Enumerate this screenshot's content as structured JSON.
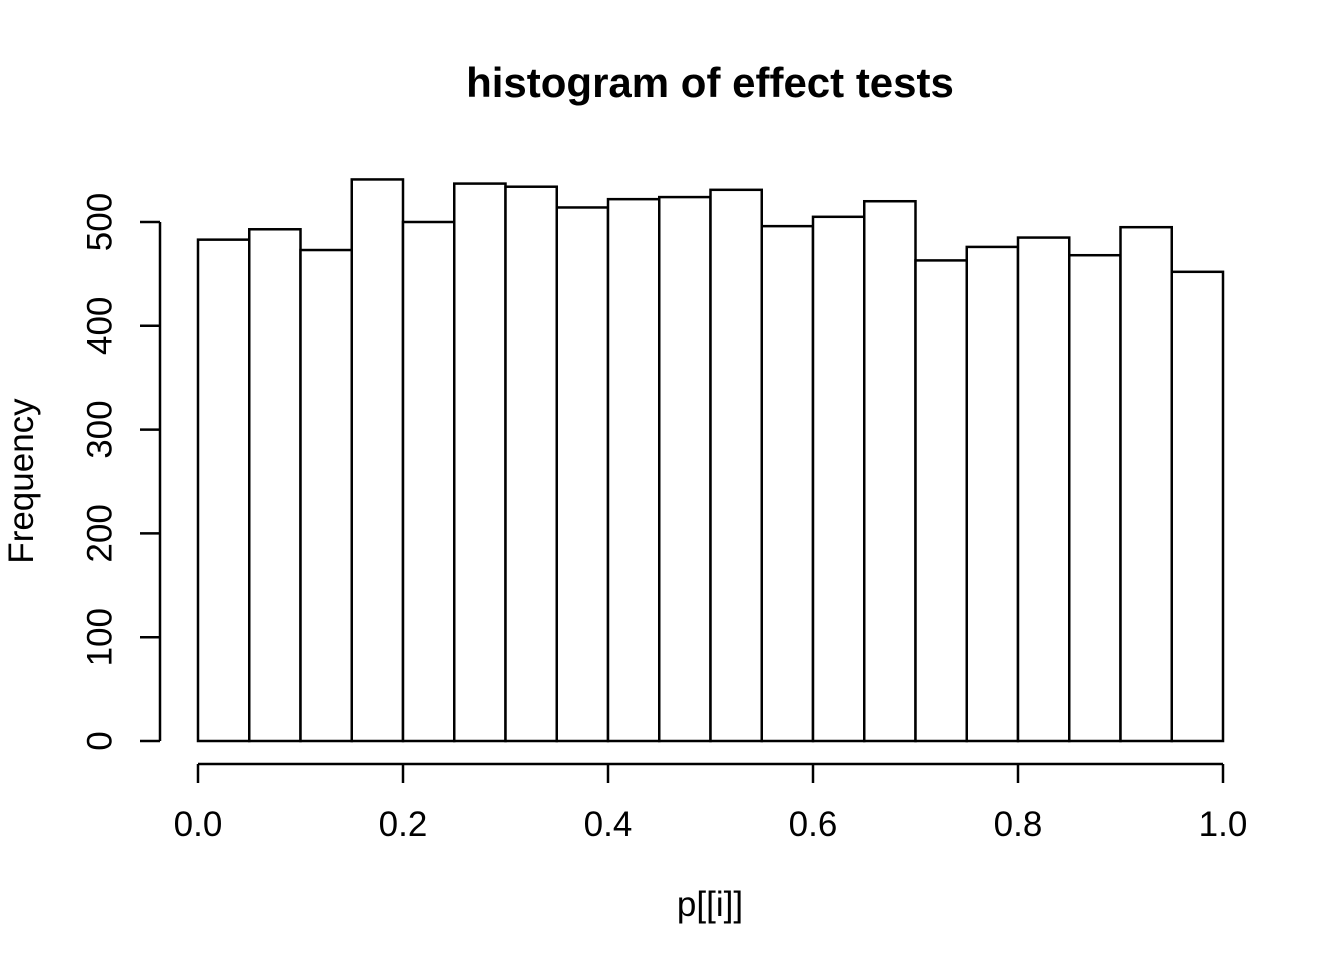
{
  "figure": {
    "background_color": "#ffffff",
    "line_color": "#000000"
  },
  "chart_data": {
    "type": "bar",
    "subtype": "histogram",
    "title": "histogram of effect tests",
    "xlabel": "p[[i]]",
    "ylabel": "Frequency",
    "bin_start": 0.0,
    "bin_width": 0.05,
    "bin_edges": [
      0.0,
      0.05,
      0.1,
      0.15,
      0.2,
      0.25,
      0.3,
      0.35,
      0.4,
      0.45,
      0.5,
      0.55,
      0.6,
      0.65,
      0.7,
      0.75,
      0.8,
      0.85,
      0.9,
      0.95,
      1.0
    ],
    "values": [
      483,
      493,
      473,
      541,
      500,
      537,
      534,
      514,
      522,
      524,
      531,
      496,
      505,
      520,
      463,
      476,
      485,
      468,
      495,
      452
    ],
    "xlim": [
      0.0,
      1.0
    ],
    "ylim": [
      0,
      500
    ],
    "x_tick_labels": [
      "0.0",
      "0.2",
      "0.4",
      "0.6",
      "0.8",
      "1.0"
    ],
    "y_tick_labels": [
      "0",
      "100",
      "200",
      "300",
      "400",
      "500"
    ],
    "bar_fill": "#ffffff",
    "bar_stroke": "#000000",
    "grid": false,
    "legend": null
  }
}
